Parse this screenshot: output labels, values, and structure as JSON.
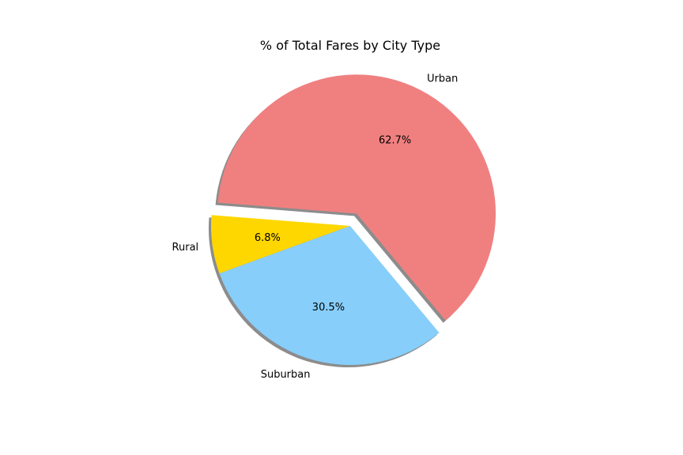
{
  "chart_data": {
    "type": "pie",
    "title": "% of Total Fares by City Type",
    "slices": [
      {
        "label": "Rural",
        "value": 6.8,
        "pct_label": "6.8%",
        "color": "#ffd700",
        "explode": false
      },
      {
        "label": "Suburban",
        "value": 30.5,
        "pct_label": "30.5%",
        "color": "#87cefa",
        "explode": false
      },
      {
        "label": "Urban",
        "value": 62.7,
        "pct_label": "62.7%",
        "color": "#f08080",
        "explode": true
      }
    ],
    "shadow": true
  }
}
